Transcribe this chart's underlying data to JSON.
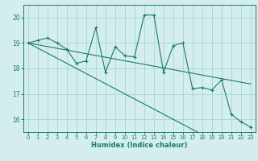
{
  "xlabel": "Humidex (Indice chaleur)",
  "x_data": [
    0,
    1,
    2,
    3,
    4,
    5,
    6,
    7,
    8,
    9,
    10,
    11,
    12,
    13,
    14,
    15,
    16,
    17,
    18,
    19,
    20,
    21,
    22,
    23
  ],
  "y_main": [
    19.0,
    19.1,
    19.2,
    19.0,
    18.75,
    18.2,
    18.3,
    19.6,
    17.85,
    18.85,
    18.5,
    18.45,
    20.1,
    20.1,
    17.85,
    18.9,
    19.0,
    17.2,
    17.25,
    17.15,
    17.55,
    16.2,
    15.9,
    15.7
  ],
  "y_trend1": [
    19.0,
    18.93,
    18.86,
    18.79,
    18.72,
    18.65,
    18.58,
    18.51,
    18.44,
    18.37,
    18.3,
    18.23,
    18.16,
    18.09,
    18.02,
    17.95,
    17.88,
    17.81,
    17.74,
    17.67,
    17.6,
    17.53,
    17.46,
    17.39
  ],
  "y_trend2": [
    19.0,
    18.8,
    18.6,
    18.4,
    18.2,
    18.0,
    17.8,
    17.6,
    17.4,
    17.2,
    17.0,
    16.8,
    16.6,
    16.4,
    16.2,
    16.0,
    15.8,
    15.6,
    15.4,
    15.2,
    15.0,
    14.8,
    14.6,
    14.4
  ],
  "line_color": "#1a7a6e",
  "bg_color": "#d4eeee",
  "grid_color": "#aad4d4",
  "ylim": [
    15.5,
    20.5
  ],
  "xlim": [
    -0.5,
    23.5
  ],
  "yticks": [
    16,
    17,
    18,
    19,
    20
  ],
  "xticks": [
    0,
    1,
    2,
    3,
    4,
    5,
    6,
    7,
    8,
    9,
    10,
    11,
    12,
    13,
    14,
    15,
    16,
    17,
    18,
    19,
    20,
    21,
    22,
    23
  ]
}
